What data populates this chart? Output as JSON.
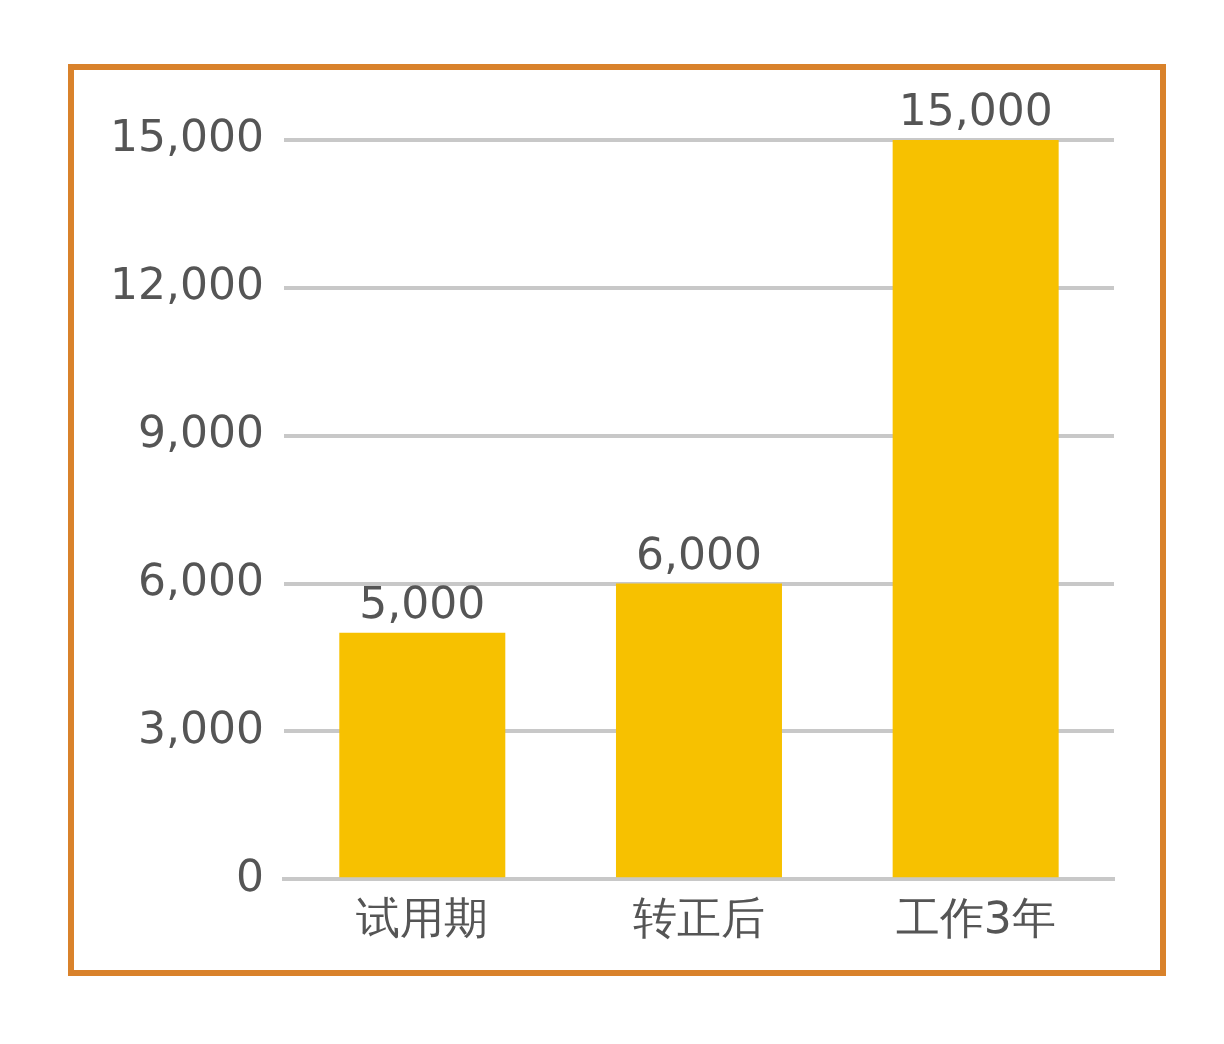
{
  "chart_data": {
    "type": "bar",
    "categories": [
      "试用期",
      "转正后",
      "工作3年"
    ],
    "values": [
      5000,
      6000,
      15000
    ],
    "value_labels": [
      "5,000",
      "6,000",
      "15,000"
    ],
    "color": "#f7c100",
    "ylim": [
      0,
      15000
    ],
    "yticks": [
      0,
      {
        "value": 3000,
        "label": "3,000"
      },
      {
        "value": 6000,
        "label": "6,000"
      },
      {
        "value": 9000,
        "label": "9,000"
      },
      {
        "value": 12000,
        "label": "12,000"
      },
      {
        "value": 15000,
        "label": "15,000"
      }
    ],
    "grid": "y"
  }
}
